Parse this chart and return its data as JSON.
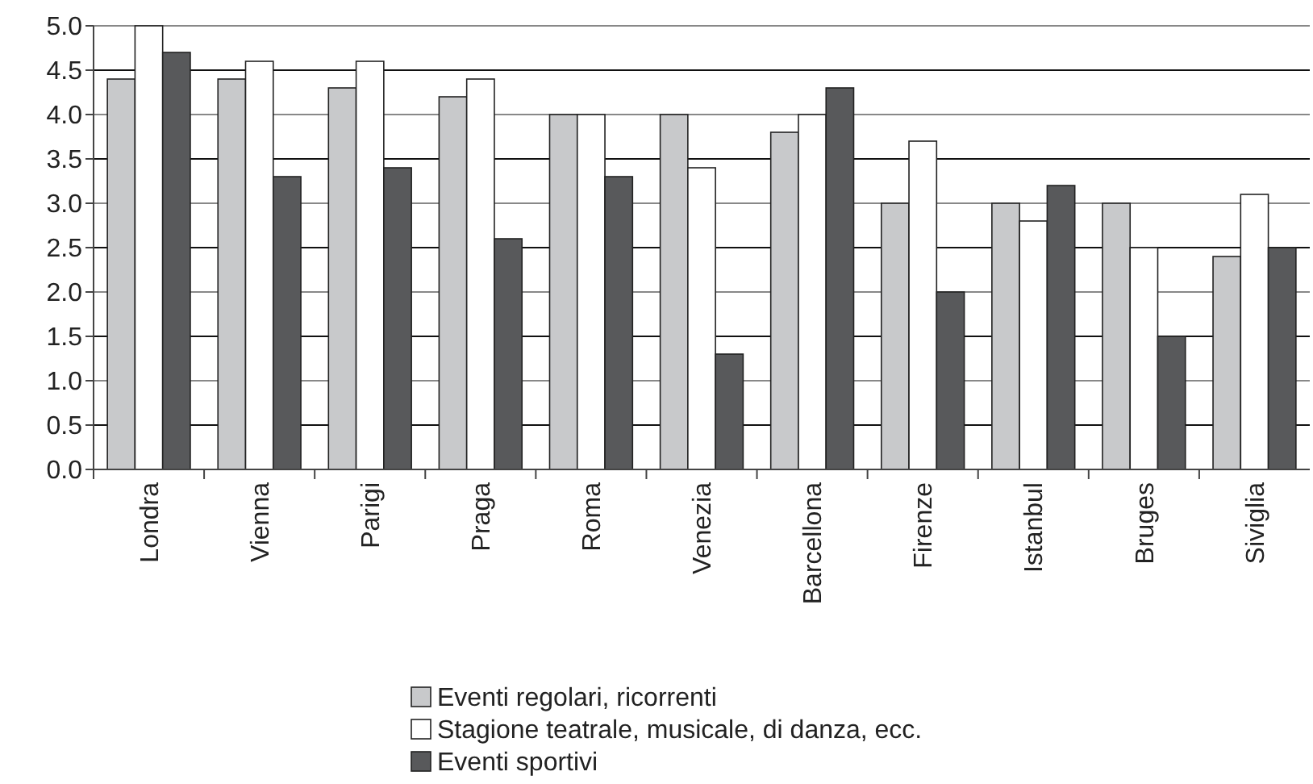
{
  "chart_data": {
    "type": "bar",
    "categories": [
      "Londra",
      "Vienna",
      "Parigi",
      "Praga",
      "Roma",
      "Venezia",
      "Barcellona",
      "Firenze",
      "Istanbul",
      "Bruges",
      "Siviglia"
    ],
    "series": [
      {
        "name": "Eventi regolari, ricorrenti",
        "color": "#c8c9cb",
        "values": [
          4.4,
          4.4,
          4.3,
          4.2,
          4.0,
          4.0,
          3.8,
          3.0,
          3.0,
          3.0,
          2.4
        ]
      },
      {
        "name": "Stagione teatrale, musicale, di danza, ecc.",
        "color": "#ffffff",
        "values": [
          5.0,
          4.6,
          4.6,
          4.4,
          4.0,
          3.4,
          4.0,
          3.7,
          2.8,
          2.5,
          3.1
        ]
      },
      {
        "name": "Eventi sportivi",
        "color": "#58595b",
        "values": [
          4.7,
          3.3,
          3.4,
          2.6,
          3.3,
          1.3,
          4.3,
          2.0,
          3.2,
          1.5,
          2.5
        ]
      }
    ],
    "ylim": [
      0,
      5
    ],
    "yticks": [
      {
        "value": 0,
        "label": "0.0"
      },
      {
        "value": 0.5,
        "label": "0.5"
      },
      {
        "value": 1,
        "label": "1.0"
      },
      {
        "value": 1.5,
        "label": "1.5"
      },
      {
        "value": 2,
        "label": "2.0"
      },
      {
        "value": 2.5,
        "label": "2.5"
      },
      {
        "value": 3,
        "label": "3.0"
      },
      {
        "value": 3.5,
        "label": "3.5"
      },
      {
        "value": 4,
        "label": "4.0"
      },
      {
        "value": 4.5,
        "label": "4.5"
      },
      {
        "value": 5,
        "label": "5.0"
      }
    ],
    "grid": "y",
    "legend": "bottom"
  }
}
